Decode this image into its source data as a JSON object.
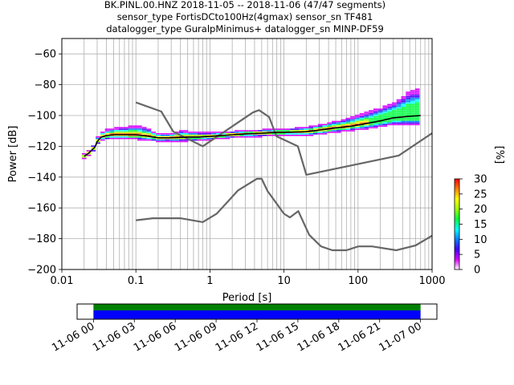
{
  "figure": {
    "title_lines": [
      "BK.PINL.00.HNZ   2018-11-05 -- 2018-11-06  (47/47 segments)",
      "sensor_type FortisDCto100Hz(4gmax) sensor_sn TF481",
      "datalogger_type GuralpMinimus+ datalogger_sn MINP-DF59"
    ]
  },
  "chart_data": {
    "type": "heatmap",
    "subtype": "probabilistic power spectral density",
    "xlabel": "Period [s]",
    "ylabel": "Power [dB]",
    "xscale": "log",
    "xlim": [
      0.01,
      1000
    ],
    "ylim": [
      -200,
      -50
    ],
    "x_ticks": [
      {
        "value": 0.01,
        "label": "0.01"
      },
      {
        "value": 0.1,
        "label": "0.1"
      },
      {
        "value": 1,
        "label": "1"
      },
      {
        "value": 10,
        "label": "10"
      },
      {
        "value": 100,
        "label": "100"
      },
      {
        "value": 1000,
        "label": "1000"
      }
    ],
    "y_ticks": [
      {
        "value": -60,
        "label": "−60"
      },
      {
        "value": -80,
        "label": "−80"
      },
      {
        "value": -100,
        "label": "−100"
      },
      {
        "value": -120,
        "label": "−120"
      },
      {
        "value": -140,
        "label": "−140"
      },
      {
        "value": -160,
        "label": "−160"
      },
      {
        "value": -180,
        "label": "−180"
      },
      {
        "value": -200,
        "label": "−200"
      }
    ],
    "grid": true,
    "vertical_grid_periods": [
      0.02,
      0.03,
      0.04,
      0.05,
      0.06,
      0.07,
      0.08,
      0.09,
      0.1,
      0.2,
      0.3,
      0.4,
      0.5,
      0.6,
      0.7,
      0.8,
      0.9,
      1,
      2,
      3,
      4,
      5,
      6,
      7,
      8,
      9,
      10,
      20,
      30,
      40,
      50,
      60,
      70,
      80,
      90,
      100,
      200,
      300,
      400,
      500,
      600,
      700,
      800,
      900
    ],
    "horizontal_grid_db": [
      -60,
      -80,
      -100,
      -120,
      -140,
      -160,
      -180
    ],
    "noise_models": [
      {
        "name": "NHNM",
        "color": "#666666",
        "points": [
          [
            0.1,
            -91.5
          ],
          [
            0.22,
            -97.4
          ],
          [
            0.32,
            -110.5
          ],
          [
            0.8,
            -120
          ],
          [
            3.8,
            -98
          ],
          [
            4.6,
            -96.5
          ],
          [
            6.3,
            -101
          ],
          [
            7.9,
            -113.5
          ],
          [
            15.4,
            -120
          ],
          [
            20,
            -138.5
          ],
          [
            354.8,
            -126
          ],
          [
            1000,
            -111.5
          ]
        ]
      },
      {
        "name": "NLNM",
        "color": "#666666",
        "points": [
          [
            0.1,
            -168
          ],
          [
            0.17,
            -166.7
          ],
          [
            0.4,
            -166.7
          ],
          [
            0.8,
            -169.2
          ],
          [
            1.24,
            -163.7
          ],
          [
            2.4,
            -148.6
          ],
          [
            4.3,
            -141.1
          ],
          [
            5,
            -141.1
          ],
          [
            6,
            -149
          ],
          [
            10,
            -163.8
          ],
          [
            12,
            -166.2
          ],
          [
            15.6,
            -162.1
          ],
          [
            21.9,
            -177.5
          ],
          [
            31.6,
            -185
          ],
          [
            45,
            -187.5
          ],
          [
            70,
            -187.5
          ],
          [
            101,
            -185
          ],
          [
            154,
            -185
          ],
          [
            328,
            -187.5
          ],
          [
            600,
            -184.4
          ],
          [
            1000,
            -178
          ]
        ]
      }
    ],
    "ppsd_mode": [
      [
        0.02,
        -126.5
      ],
      [
        0.023,
        -124.5
      ],
      [
        0.026,
        -122
      ],
      [
        0.028,
        -120.5
      ],
      [
        0.03,
        -117
      ],
      [
        0.034,
        -114
      ],
      [
        0.04,
        -113
      ],
      [
        0.05,
        -112.5
      ],
      [
        0.07,
        -112.5
      ],
      [
        0.1,
        -112.5
      ],
      [
        0.15,
        -113.5
      ],
      [
        0.2,
        -114.5
      ],
      [
        0.3,
        -114.5
      ],
      [
        0.5,
        -114
      ],
      [
        0.7,
        -114
      ],
      [
        1,
        -113.5
      ],
      [
        1.5,
        -113
      ],
      [
        2,
        -112.5
      ],
      [
        3,
        -112
      ],
      [
        5,
        -111.5
      ],
      [
        8,
        -111
      ],
      [
        10,
        -111
      ],
      [
        20,
        -110.5
      ],
      [
        30,
        -109.5
      ],
      [
        50,
        -108
      ],
      [
        80,
        -107
      ],
      [
        120,
        -105.5
      ],
      [
        200,
        -103.5
      ],
      [
        300,
        -101.5
      ],
      [
        500,
        -100.5
      ],
      [
        700,
        -100
      ]
    ],
    "ppsd_spread": [
      [
        0.02,
        0.5,
        0.5
      ],
      [
        0.03,
        1,
        1
      ],
      [
        0.035,
        2,
        1.5
      ],
      [
        0.05,
        3,
        1.5
      ],
      [
        0.08,
        4,
        2
      ],
      [
        0.12,
        4.5,
        2
      ],
      [
        0.17,
        2.5,
        1.5
      ],
      [
        0.25,
        1,
        1
      ],
      [
        0.4,
        3,
        1.5
      ],
      [
        0.6,
        2,
        1.5
      ],
      [
        1,
        1,
        1
      ],
      [
        3,
        1,
        1
      ],
      [
        10,
        1,
        1
      ],
      [
        20,
        1.5,
        1.5
      ],
      [
        50,
        3,
        2
      ],
      [
        100,
        5,
        2
      ],
      [
        200,
        7,
        3
      ],
      [
        300,
        8,
        3.5
      ],
      [
        400,
        12,
        4
      ],
      [
        500,
        15,
        4.5
      ],
      [
        700,
        16,
        5
      ]
    ],
    "colorbar": {
      "label": "[%]",
      "range": [
        0,
        30
      ],
      "ticks": [
        {
          "value": 0,
          "label": "0"
        },
        {
          "value": 5,
          "label": "5"
        },
        {
          "value": 10,
          "label": "10"
        },
        {
          "value": 15,
          "label": "15"
        },
        {
          "value": 20,
          "label": "20"
        },
        {
          "value": 25,
          "label": "25"
        },
        {
          "value": 30,
          "label": "30"
        }
      ],
      "colors": [
        "#ffffff",
        "#d600ff",
        "#4000ff",
        "#0080ff",
        "#00ffff",
        "#00ff40",
        "#a0ff00",
        "#ffff00",
        "#ff8000",
        "#ff0000"
      ]
    },
    "coverage": {
      "time_ticks": [
        {
          "value": 0,
          "label": "11-06 00"
        },
        {
          "value": 3,
          "label": "11-06 03"
        },
        {
          "value": 6,
          "label": "11-06 06"
        },
        {
          "value": 9,
          "label": "11-06 09"
        },
        {
          "value": 12,
          "label": "11-06 12"
        },
        {
          "value": 15,
          "label": "11-06 15"
        },
        {
          "value": 18,
          "label": "11-06 18"
        },
        {
          "value": 21,
          "label": "11-06 21"
        },
        {
          "value": 24,
          "label": "11-07 00"
        }
      ],
      "time_range_hours": [
        -1.2,
        25.2
      ],
      "data_available": [
        0,
        24
      ],
      "processed": [
        0,
        24
      ],
      "available_color": "#008000",
      "processed_color": "#0000ff"
    }
  }
}
